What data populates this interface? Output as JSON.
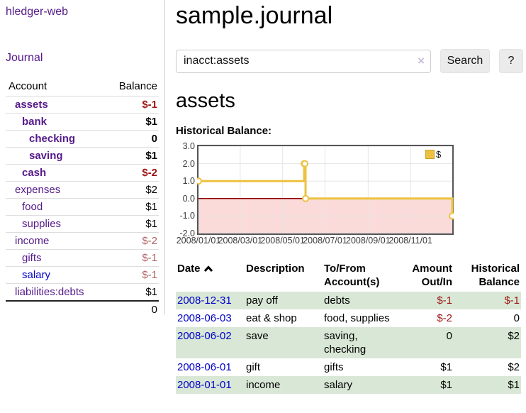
{
  "app": {
    "title": "hledger-web"
  },
  "sidebar": {
    "journal_link": "Journal",
    "accounts": {
      "headers": {
        "account": "Account",
        "balance": "Balance"
      },
      "rows": [
        {
          "account": "assets",
          "balance": "$-1",
          "level": 1,
          "bold": true,
          "link_color": "purple",
          "balance_class": "neg-strong"
        },
        {
          "account": "bank",
          "balance": "$1",
          "level": 2,
          "bold": true,
          "link_color": "purple",
          "balance_class": ""
        },
        {
          "account": "checking",
          "balance": "0",
          "level": 3,
          "bold": true,
          "link_color": "purple",
          "balance_class": ""
        },
        {
          "account": "saving",
          "balance": "$1",
          "level": 3,
          "bold": true,
          "link_color": "purple",
          "balance_class": ""
        },
        {
          "account": "cash",
          "balance": "$-2",
          "level": 2,
          "bold": true,
          "link_color": "purple",
          "balance_class": "neg-strong"
        },
        {
          "account": "expenses",
          "balance": "$2",
          "level": 1,
          "bold": false,
          "link_color": "purple",
          "balance_class": ""
        },
        {
          "account": "food",
          "balance": "$1",
          "level": 2,
          "bold": false,
          "link_color": "purple",
          "balance_class": ""
        },
        {
          "account": "supplies",
          "balance": "$1",
          "level": 2,
          "bold": false,
          "link_color": "purple",
          "balance_class": ""
        },
        {
          "account": "income",
          "balance": "$-2",
          "level": 1,
          "bold": false,
          "link_color": "purple",
          "balance_class": "neg-soft"
        },
        {
          "account": "gifts",
          "balance": "$-1",
          "level": 2,
          "bold": false,
          "link_color": "purple",
          "balance_class": "neg-soft"
        },
        {
          "account": "salary",
          "balance": "$-1",
          "level": 2,
          "bold": false,
          "link_color": "blue",
          "balance_class": "neg-soft"
        },
        {
          "account": "liabilities:debts",
          "balance": "$1",
          "level": 1,
          "bold": false,
          "link_color": "purple",
          "balance_class": ""
        }
      ],
      "total": "0"
    }
  },
  "main": {
    "title": "sample.journal",
    "search": {
      "value": "inacct:assets",
      "clear_icon": "×",
      "button_label": "Search",
      "help_label": "?"
    },
    "section_title": "assets",
    "chart_label": "Historical Balance:"
  },
  "chart_data": {
    "type": "line",
    "step": true,
    "title": "Historical Balance:",
    "series": [
      {
        "name": "$",
        "color": "#edc240",
        "points": [
          [
            "2008-01-01",
            1
          ],
          [
            "2008-06-01",
            2
          ],
          [
            "2008-06-02",
            2
          ],
          [
            "2008-06-03",
            0
          ],
          [
            "2008-12-31",
            -1
          ]
        ]
      }
    ],
    "xlim": [
      "2008-01-01",
      "2008-12-31"
    ],
    "ylim": [
      -2,
      3
    ],
    "y_ticks": [
      "3.0",
      "2.0",
      "1.0",
      "0.0",
      "-1.0",
      "-2.0"
    ],
    "y_tick_values": [
      3,
      2,
      1,
      0,
      -1,
      -2
    ],
    "x_ticks": [
      "2008/01/01",
      "2008/03/01",
      "2008/05/01",
      "2008/07/01",
      "2008/09/01",
      "2008/11/01"
    ],
    "x_tick_dates": [
      "2008-01-01",
      "2008-03-01",
      "2008-05-01",
      "2008-07-01",
      "2008-09-01",
      "2008-11-01"
    ],
    "legend": "$",
    "legend_position": "top-right",
    "grid": true,
    "grid_color": "#e5e5e5",
    "plot_border_color": "#555555",
    "zero_line_color": "#8f0000",
    "negative_region_color": "#fbdada",
    "marker": "open-circle"
  },
  "register": {
    "columns": [
      {
        "line1": "Date",
        "line2": "",
        "align": "left",
        "sort_icon": true
      },
      {
        "line1": "Description",
        "line2": "",
        "align": "left",
        "sort_icon": false
      },
      {
        "line1": "To/From",
        "line2": "Account(s)",
        "align": "left",
        "sort_icon": false
      },
      {
        "line1": "Amount",
        "line2": "Out/In",
        "align": "right",
        "sort_icon": false
      },
      {
        "line1": "Historical",
        "line2": "Balance",
        "align": "right",
        "sort_icon": false
      }
    ],
    "rows": [
      {
        "date": "2008-12-31",
        "description": "pay off",
        "accounts": "debts",
        "amount": "$-1",
        "amount_class": "neg-strong",
        "balance": "$-1",
        "balance_class": "neg-strong",
        "striped": true
      },
      {
        "date": "2008-06-03",
        "description": "eat & shop",
        "accounts": "food, supplies",
        "amount": "$-2",
        "amount_class": "neg-strong",
        "balance": "0",
        "balance_class": "",
        "striped": false
      },
      {
        "date": "2008-06-02",
        "description": "save",
        "accounts": "saving, checking",
        "amount": "0",
        "amount_class": "",
        "balance": "$2",
        "balance_class": "",
        "striped": true
      },
      {
        "date": "2008-06-01",
        "description": "gift",
        "accounts": "gifts",
        "amount": "$1",
        "amount_class": "",
        "balance": "$2",
        "balance_class": "",
        "striped": false
      },
      {
        "date": "2008-01-01",
        "description": "income",
        "accounts": "salary",
        "amount": "$1",
        "amount_class": "",
        "balance": "$1",
        "balance_class": "",
        "striped": true
      }
    ]
  },
  "colors": {
    "link_purple": "#551a8b",
    "link_blue": "#0000cc",
    "negative_strong": "#9d1414",
    "negative_soft": "#b26262",
    "row_green": "#d9e8d6",
    "series_gold": "#edc240"
  }
}
